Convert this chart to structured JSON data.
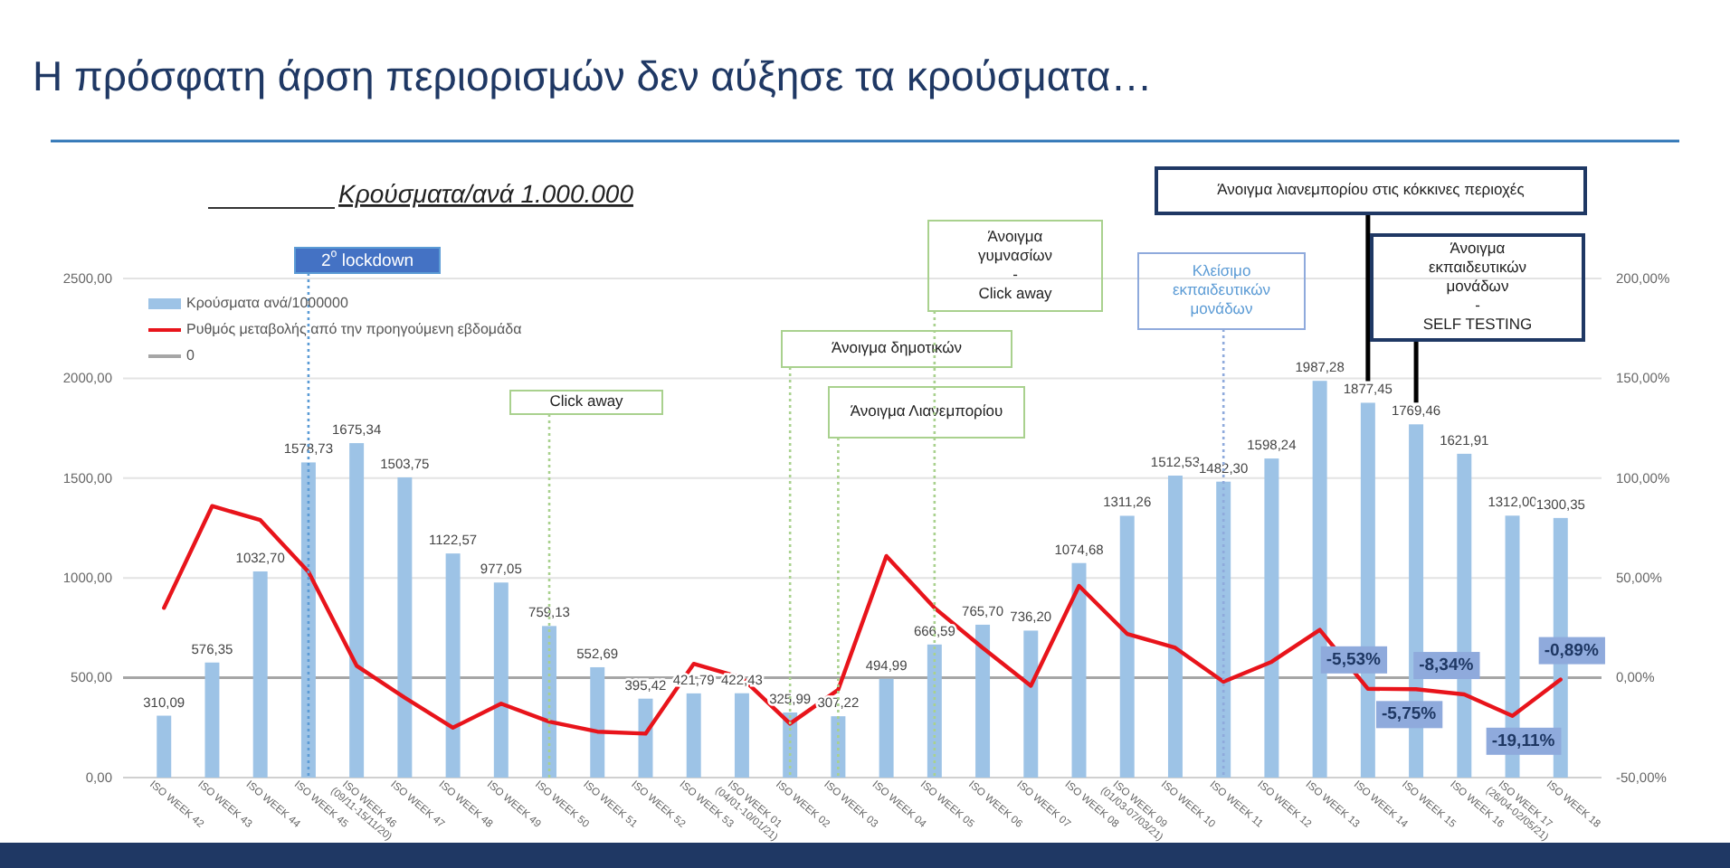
{
  "chart_data": {
    "type": "bar",
    "title": "Η πρόσφατη άρση περιορισμών δεν αύξησε τα κρούσματα…",
    "subtitle": "Κρούσματα/ανά 1.000.000",
    "categories": [
      "ISO WEEK 42",
      "ISO WEEK 43",
      "ISO WEEK 44",
      "ISO WEEK 45",
      "ISO WEEK 46 (09/11-15/11/20)",
      "ISO WEEK 47",
      "ISO WEEK 48",
      "ISO WEEK 49",
      "ISO WEEK 50",
      "ISO WEEK 51",
      "ISO WEEK 52",
      "ISO WEEK 53",
      "ISO WEEK 01(04/01-10/01/21)",
      "ISO WEEK 02",
      "ISO WEEK 03",
      "ISO WEEK 04",
      "ISO WEEK 05",
      "ISO WEEK 06",
      "ISO WEEK 07",
      "ISO WEEK 08",
      "ISO WEEK 09(01/03-07/03/21)",
      "ISO WEEK 10",
      "ISO WEEK 11",
      "ISO WEEK 12",
      "ISO WEEK 13",
      "ISO WEEK 14",
      "ISO WEEK 15",
      "ISO WEEK 16",
      "ISO WEEK 17(26/04-02/05/21)",
      "ISO WEEK 18"
    ],
    "series": [
      {
        "type": "bar",
        "name": "Κρούσματα ανά/1000000",
        "color": "#9dc3e6",
        "values": [
          310.09,
          576.35,
          1032.7,
          1578.73,
          1675.34,
          1503.75,
          1122.57,
          977.05,
          759.13,
          552.69,
          395.42,
          421.79,
          422.43,
          325.99,
          307.22,
          494.99,
          666.59,
          765.7,
          736.2,
          1074.68,
          1311.26,
          1512.53,
          1482.3,
          1598.24,
          1987.28,
          1877.45,
          1769.46,
          1621.91,
          1312.0,
          1300.35
        ],
        "value_labels": [
          "310,09",
          "576,35",
          "1032,70",
          "1578,73",
          "1675,34",
          "1503,75",
          "1122,57",
          "977,05",
          "759,13",
          "552,69",
          "395,42",
          "421,79",
          "422,43",
          "325,99",
          "307,22",
          "494,99",
          "666,59",
          "765,70",
          "736,20",
          "1074,68",
          "1311,26",
          "1512,53",
          "1482,30",
          "1598,24",
          "1987,28",
          "1877,45",
          "1769,46",
          "1621,91",
          "1312,00",
          "1300,35"
        ]
      },
      {
        "type": "line",
        "axis": "y2",
        "name": "Ρυθμός μεταβολής από την προηγούμενη εβδομάδα",
        "color": "#e8141b",
        "values": [
          35,
          86,
          79,
          53,
          6,
          -10,
          -25,
          -13,
          -22,
          -27,
          -28,
          7,
          0,
          -23,
          -6,
          61,
          35,
          15,
          -4,
          46,
          22,
          15,
          -2,
          8,
          24,
          -5.53,
          -5.75,
          -8.34,
          -19.11,
          -0.89
        ],
        "value_labels": [
          null,
          null,
          null,
          null,
          null,
          null,
          null,
          null,
          null,
          null,
          null,
          null,
          null,
          null,
          null,
          null,
          null,
          null,
          null,
          null,
          null,
          null,
          null,
          null,
          null,
          "-5,53%",
          "-5,75%",
          "-8,34%",
          "-19,11%",
          "-0,89%"
        ]
      }
    ],
    "ylim": [
      0,
      2500
    ],
    "yticks": [
      {
        "value": 0,
        "label": "0,00"
      },
      {
        "value": 500,
        "label": "500,00"
      },
      {
        "value": 1000,
        "label": "1000,00"
      },
      {
        "value": 1500,
        "label": "1500,00"
      },
      {
        "value": 2000,
        "label": "2000,00"
      },
      {
        "value": 2500,
        "label": "2500,00"
      }
    ],
    "y2lim": [
      -50,
      200
    ],
    "y2ticks": [
      {
        "value": -50,
        "label": "-50,00%"
      },
      {
        "value": 0,
        "label": "0,00%"
      },
      {
        "value": 50,
        "label": "50,00%"
      },
      {
        "value": 100,
        "label": "100,00%"
      },
      {
        "value": 150,
        "label": "150,00%"
      },
      {
        "value": 200,
        "label": "200,00%"
      }
    ],
    "grid": "y",
    "legend": "top left",
    "ref_lines": [
      {
        "axis": "y2",
        "value": 0,
        "label": "0",
        "color": "#a6a6a6",
        "line_style": "solid"
      },
      {
        "axis": "x",
        "value": "ISO WEEK 45",
        "label": "2$^{ο}$ lockdown",
        "color": "#5b9bd5",
        "line_style": "dotted"
      },
      {
        "axis": "x",
        "value": "ISO WEEK 50",
        "label": "Click away",
        "color": "#a9d18e",
        "line_style": "dotted"
      },
      {
        "axis": "x",
        "value": "ISO WEEK 02",
        "label": "Άνοιγμα δημοτικών",
        "color": "#a9d18e",
        "line_style": "dotted"
      },
      {
        "axis": "x",
        "value": "ISO WEEK 03",
        "label": "Άνοιγμα Λιανεμπορίου",
        "color": "#a9d18e",
        "line_style": "dotted"
      },
      {
        "axis": "x",
        "value": "ISO WEEK 05",
        "label": "Άνοιγμα\nγυμνασίων\n-\nClick away",
        "color": "#a9d18e",
        "line_style": "dotted"
      },
      {
        "axis": "x",
        "value": "ISO WEEK 11",
        "label": "Κλείσιμο\nεκπαιδευτικών\nμονάδων",
        "color": "#8faadc",
        "line_style": "dotted"
      },
      {
        "axis": "x",
        "value": "ISO WEEK 14",
        "label": "Άνοιγμα λιανεμπορίου στις κόκκινες περιοχές",
        "color": "#000000",
        "line_style": "solid"
      },
      {
        "axis": "x",
        "value": "ISO WEEK 15",
        "label": "Άνοιγμα\nεκπαιδευτικών\nμονάδων\n-\nSELF TESTING",
        "color": "#000000",
        "line_style": "solid"
      }
    ]
  }
}
